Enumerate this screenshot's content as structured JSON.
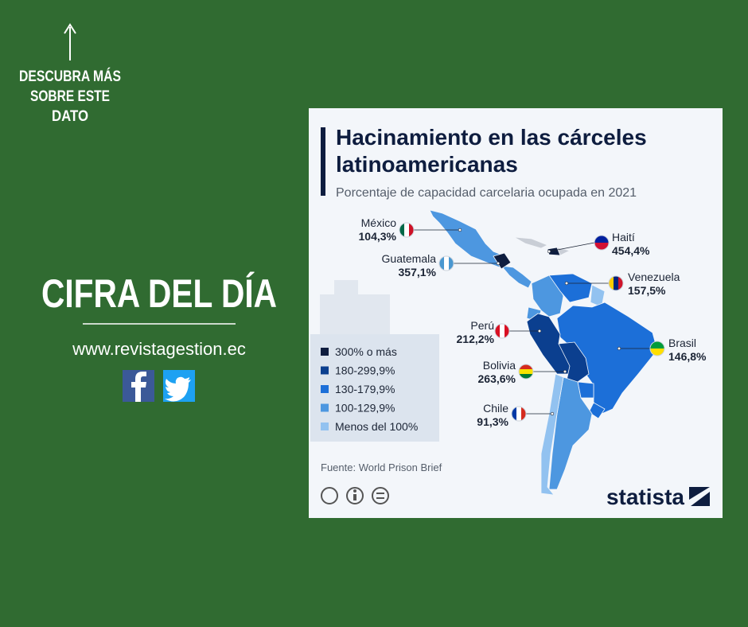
{
  "sidebar": {
    "cta": [
      "DESCUBRA MÁS",
      "SOBRE ESTE",
      "DATO"
    ],
    "title": "CIFRA DEL DÍA",
    "website": "www.revistagestion.ec"
  },
  "card": {
    "title": [
      "Hacinamiento en las cárceles",
      "latinoamericanas"
    ],
    "subtitle": "Porcentaje de capacidad carcelaria ocupada en 2021",
    "legend": [
      {
        "label": "300% o más",
        "color": "#0e1d3f"
      },
      {
        "label": "180-299,9%",
        "color": "#0b3f8f"
      },
      {
        "label": "130-179,9%",
        "color": "#1c6fd8"
      },
      {
        "label": "100-129,9%",
        "color": "#4d97e0"
      },
      {
        "label": "Menos del 100%",
        "color": "#92c2f0"
      }
    ],
    "countries": [
      {
        "name": "México",
        "value": "104,3%"
      },
      {
        "name": "Guatemala",
        "value": "357,1%"
      },
      {
        "name": "Haití",
        "value": "454,4%"
      },
      {
        "name": "Venezuela",
        "value": "157,5%"
      },
      {
        "name": "Perú",
        "value": "212,2%"
      },
      {
        "name": "Brasil",
        "value": "146,8%"
      },
      {
        "name": "Bolivia",
        "value": "263,6%"
      },
      {
        "name": "Chile",
        "value": "91,3%"
      }
    ],
    "source": "Fuente: World Prison Brief",
    "brand": "statista"
  }
}
